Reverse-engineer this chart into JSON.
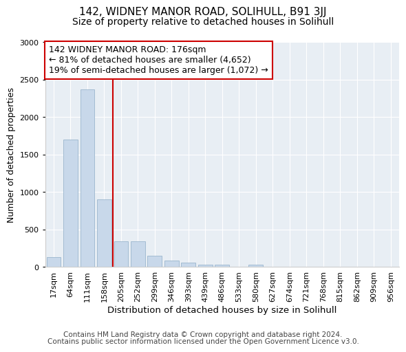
{
  "title1": "142, WIDNEY MANOR ROAD, SOLIHULL, B91 3JJ",
  "title2": "Size of property relative to detached houses in Solihull",
  "xlabel": "Distribution of detached houses by size in Solihull",
  "ylabel": "Number of detached properties",
  "bar_color": "#c8d8ea",
  "bar_edge_color": "#9ab5cd",
  "vline_color": "#cc0000",
  "vline_x_idx": 3,
  "categories": [
    "17sqm",
    "64sqm",
    "111sqm",
    "158sqm",
    "205sqm",
    "252sqm",
    "299sqm",
    "346sqm",
    "393sqm",
    "439sqm",
    "486sqm",
    "533sqm",
    "580sqm",
    "627sqm",
    "674sqm",
    "721sqm",
    "768sqm",
    "815sqm",
    "862sqm",
    "909sqm",
    "956sqm"
  ],
  "values": [
    130,
    1700,
    2370,
    900,
    340,
    340,
    150,
    90,
    60,
    30,
    30,
    5,
    30,
    3,
    3,
    3,
    3,
    3,
    3,
    3,
    3
  ],
  "ylim": [
    0,
    3000
  ],
  "yticks": [
    0,
    500,
    1000,
    1500,
    2000,
    2500,
    3000
  ],
  "annotation_title": "142 WIDNEY MANOR ROAD: 176sqm",
  "annotation_line1": "← 81% of detached houses are smaller (4,652)",
  "annotation_line2": "19% of semi-detached houses are larger (1,072) →",
  "annotation_box_facecolor": "#ffffff",
  "annotation_box_edgecolor": "#cc0000",
  "footer1": "Contains HM Land Registry data © Crown copyright and database right 2024.",
  "footer2": "Contains public sector information licensed under the Open Government Licence v3.0.",
  "bg_color": "#e8eef4",
  "title1_fontsize": 11,
  "title2_fontsize": 10,
  "annotation_fontsize": 9,
  "tick_fontsize": 8,
  "ylabel_fontsize": 9,
  "xlabel_fontsize": 9.5,
  "footer_fontsize": 7.5
}
